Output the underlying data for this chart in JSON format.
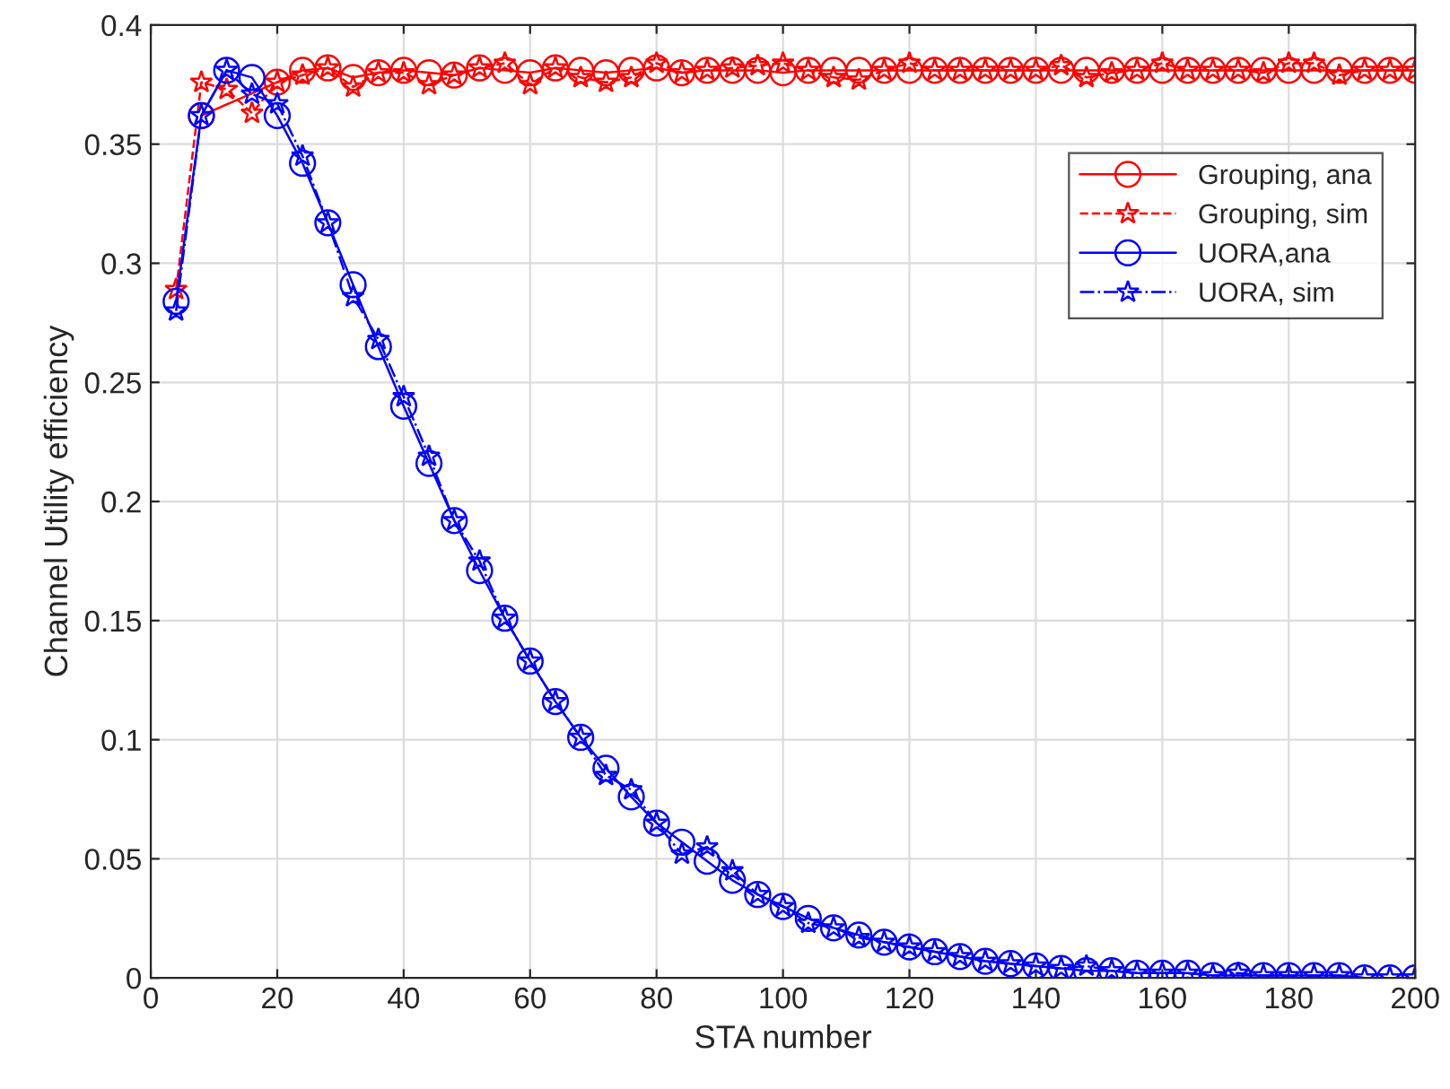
{
  "chart_data": {
    "type": "line",
    "xlabel": "STA number",
    "ylabel": "Channel Utility efficiency",
    "x": [
      4,
      8,
      12,
      16,
      20,
      24,
      28,
      32,
      36,
      40,
      44,
      48,
      52,
      56,
      60,
      64,
      68,
      72,
      76,
      80,
      84,
      88,
      92,
      96,
      100,
      104,
      108,
      112,
      116,
      120,
      124,
      128,
      132,
      136,
      140,
      144,
      148,
      152,
      156,
      160,
      164,
      168,
      172,
      176,
      180,
      184,
      188,
      192,
      196,
      200
    ],
    "series": [
      {
        "name": "Grouping, ana",
        "color": "#ff0000",
        "marker": "circle",
        "line_style": "solid",
        "values": [
          null,
          0.362,
          null,
          null,
          0.376,
          0.381,
          0.382,
          0.378,
          0.38,
          0.381,
          0.38,
          0.379,
          0.382,
          0.381,
          0.38,
          0.382,
          0.381,
          0.38,
          0.381,
          0.382,
          0.38,
          0.381,
          0.381,
          0.381,
          0.38,
          0.381,
          0.381,
          0.381,
          0.381,
          0.381,
          0.381,
          0.381,
          0.381,
          0.381,
          0.381,
          0.381,
          0.381,
          0.381,
          0.381,
          0.381,
          0.381,
          0.381,
          0.381,
          0.381,
          0.381,
          0.381,
          0.381,
          0.381,
          0.381,
          0.381
        ]
      },
      {
        "name": "Grouping, sim",
        "color": "#ff0000",
        "marker": "star",
        "line_style": "dashed",
        "values": [
          0.289,
          0.376,
          0.373,
          0.363,
          0.376,
          0.379,
          0.382,
          0.374,
          0.38,
          0.38,
          0.375,
          0.379,
          0.382,
          0.384,
          0.375,
          0.382,
          0.378,
          0.376,
          0.378,
          0.384,
          0.38,
          0.381,
          0.382,
          0.383,
          0.384,
          0.381,
          0.378,
          0.377,
          0.381,
          0.384,
          0.381,
          0.381,
          0.381,
          0.381,
          0.381,
          0.383,
          0.378,
          0.38,
          0.381,
          0.384,
          0.381,
          0.381,
          0.381,
          0.38,
          0.384,
          0.384,
          0.379,
          0.381,
          0.381,
          0.381
        ]
      },
      {
        "name": "UORA,ana",
        "color": "#0000ff",
        "marker": "circle",
        "line_style": "solid",
        "values": [
          0.284,
          0.362,
          0.381,
          0.378,
          0.362,
          0.342,
          0.317,
          0.291,
          0.265,
          0.24,
          0.216,
          0.192,
          0.171,
          0.151,
          0.133,
          0.116,
          0.101,
          0.088,
          0.076,
          0.065,
          0.057,
          0.049,
          0.041,
          0.035,
          0.03,
          0.025,
          0.021,
          0.018,
          0.015,
          0.013,
          0.011,
          0.009,
          0.007,
          0.006,
          0.005,
          0.004,
          0.003,
          0.003,
          0.002,
          0.002,
          0.002,
          0.001,
          0.001,
          0.001,
          0.001,
          0.001,
          0.001,
          0.0,
          0.0,
          0.0
        ]
      },
      {
        "name": "UORA, sim",
        "color": "#0000ff",
        "marker": "star",
        "line_style": "dashdot",
        "values": [
          0.28,
          0.362,
          0.381,
          0.371,
          0.367,
          0.345,
          0.317,
          0.286,
          0.268,
          0.244,
          0.219,
          0.192,
          0.175,
          0.151,
          0.133,
          0.116,
          0.101,
          0.085,
          0.079,
          0.065,
          0.052,
          0.055,
          0.045,
          0.035,
          0.03,
          0.023,
          0.021,
          0.017,
          0.015,
          0.013,
          0.011,
          0.009,
          0.007,
          0.006,
          0.005,
          0.004,
          0.005,
          0.003,
          0.002,
          0.002,
          0.002,
          0.001,
          0.002,
          0.001,
          0.001,
          0.001,
          0.001,
          0.0,
          0.0,
          0.0
        ]
      }
    ],
    "xlim": [
      0,
      200
    ],
    "xticks": [
      0,
      20,
      40,
      60,
      80,
      100,
      120,
      140,
      160,
      180,
      200
    ],
    "ylim": [
      0,
      0.4
    ],
    "yticks": [
      0,
      0.05,
      0.1,
      0.15,
      0.2,
      0.25,
      0.3,
      0.35,
      0.4
    ],
    "grid": true,
    "legend": "top right"
  }
}
